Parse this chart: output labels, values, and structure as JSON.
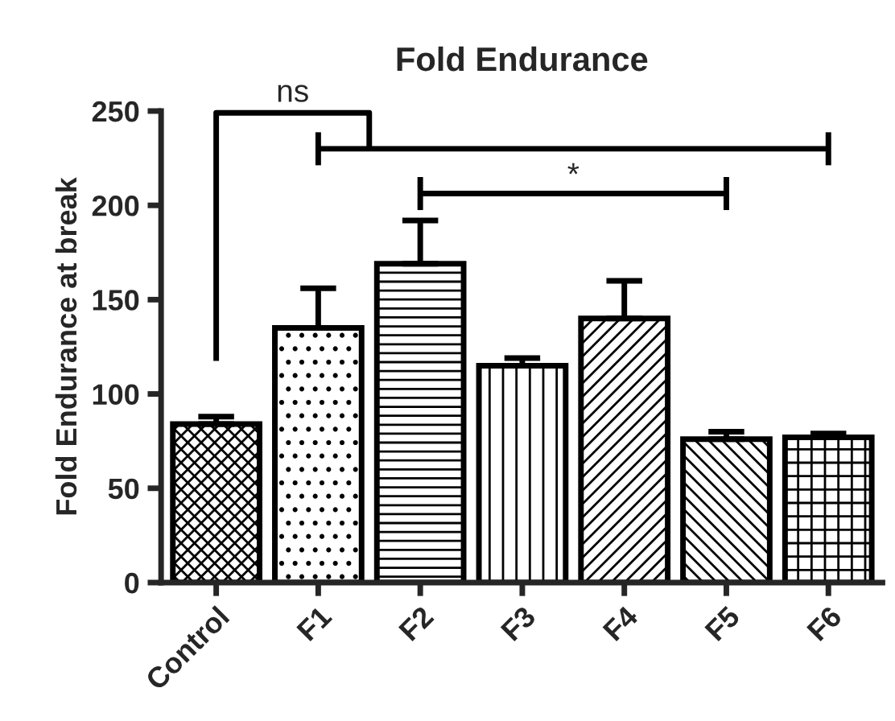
{
  "chart_data": {
    "type": "bar",
    "title": "Fold Endurance",
    "ylabel": "Fold Endurance at break",
    "categories": [
      "Control",
      "F1",
      "F2",
      "F3",
      "F4",
      "F5",
      "F6"
    ],
    "series": [
      {
        "color": "#000000",
        "values": [
          84,
          135,
          169,
          115,
          140,
          76,
          77
        ],
        "errors": [
          4,
          21,
          23,
          4,
          20,
          4,
          2
        ]
      }
    ],
    "ylim": [
      0,
      250
    ],
    "yticks": [
      0,
      50,
      100,
      150,
      200,
      250
    ],
    "grid": false,
    "legend": false,
    "annotations": [
      "ns",
      "*"
    ]
  }
}
